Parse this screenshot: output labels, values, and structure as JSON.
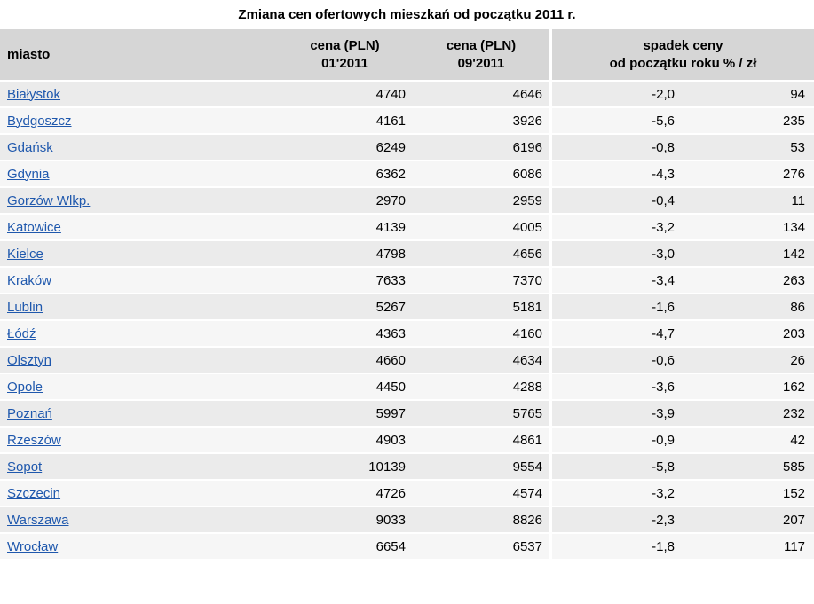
{
  "title": "Zmiana cen ofertowych mieszkań od początku 2011 r.",
  "colors": {
    "header_bg": "#d6d6d6",
    "row_odd_bg": "#ebebeb",
    "row_even_bg": "#f6f6f6",
    "separator": "#ffffff",
    "link_blue": "#1f58ad",
    "text": "#000000"
  },
  "table": {
    "headers": {
      "city": "miasto",
      "price1_line1": "cena (PLN)",
      "price1_line2": "01'2011",
      "price2_line1": "cena (PLN)",
      "price2_line2": "09'2011",
      "drop_line1": "spadek ceny",
      "drop_line2": "od początku roku % / zł"
    },
    "rows": [
      {
        "city": "Białystok",
        "price_01": "4740",
        "price_09": "4646",
        "drop_pct": "-2,0",
        "drop_zl": "94"
      },
      {
        "city": "Bydgoszcz",
        "price_01": "4161",
        "price_09": "3926",
        "drop_pct": "-5,6",
        "drop_zl": "235"
      },
      {
        "city": "Gdańsk",
        "price_01": "6249",
        "price_09": "6196",
        "drop_pct": "-0,8",
        "drop_zl": "53"
      },
      {
        "city": "Gdynia",
        "price_01": "6362",
        "price_09": "6086",
        "drop_pct": "-4,3",
        "drop_zl": "276"
      },
      {
        "city": "Gorzów Wlkp.",
        "price_01": "2970",
        "price_09": "2959",
        "drop_pct": "-0,4",
        "drop_zl": "11"
      },
      {
        "city": "Katowice",
        "price_01": "4139",
        "price_09": "4005",
        "drop_pct": "-3,2",
        "drop_zl": "134"
      },
      {
        "city": "Kielce",
        "price_01": "4798",
        "price_09": "4656",
        "drop_pct": "-3,0",
        "drop_zl": "142"
      },
      {
        "city": "Kraków",
        "price_01": "7633",
        "price_09": "7370",
        "drop_pct": "-3,4",
        "drop_zl": "263"
      },
      {
        "city": "Lublin",
        "price_01": "5267",
        "price_09": "5181",
        "drop_pct": "-1,6",
        "drop_zl": "86"
      },
      {
        "city": "Łódź",
        "price_01": "4363",
        "price_09": "4160",
        "drop_pct": "-4,7",
        "drop_zl": "203"
      },
      {
        "city": "Olsztyn",
        "price_01": "4660",
        "price_09": "4634",
        "drop_pct": "-0,6",
        "drop_zl": "26"
      },
      {
        "city": "Opole",
        "price_01": "4450",
        "price_09": "4288",
        "drop_pct": "-3,6",
        "drop_zl": "162"
      },
      {
        "city": "Poznań",
        "price_01": "5997",
        "price_09": "5765",
        "drop_pct": "-3,9",
        "drop_zl": "232"
      },
      {
        "city": "Rzeszów",
        "price_01": "4903",
        "price_09": "4861",
        "drop_pct": "-0,9",
        "drop_zl": "42"
      },
      {
        "city": "Sopot",
        "price_01": "10139",
        "price_09": "9554",
        "drop_pct": "-5,8",
        "drop_zl": "585"
      },
      {
        "city": "Szczecin",
        "price_01": "4726",
        "price_09": "4574",
        "drop_pct": "-3,2",
        "drop_zl": "152"
      },
      {
        "city": "Warszawa",
        "price_01": "9033",
        "price_09": "8826",
        "drop_pct": "-2,3",
        "drop_zl": "207"
      },
      {
        "city": "Wrocław",
        "price_01": "6654",
        "price_09": "6537",
        "drop_pct": "-1,8",
        "drop_zl": "117"
      }
    ]
  },
  "chart_data": {
    "type": "table",
    "title": "Zmiana cen ofertowych mieszkań od początku 2011 r.",
    "columns": [
      "miasto",
      "cena (PLN) 01'2011",
      "cena (PLN) 09'2011",
      "spadek ceny od początku roku %",
      "spadek ceny od początku roku zł"
    ],
    "rows": [
      [
        "Białystok",
        4740,
        4646,
        -2.0,
        94
      ],
      [
        "Bydgoszcz",
        4161,
        3926,
        -5.6,
        235
      ],
      [
        "Gdańsk",
        6249,
        6196,
        -0.8,
        53
      ],
      [
        "Gdynia",
        6362,
        6086,
        -4.3,
        276
      ],
      [
        "Gorzów Wlkp.",
        2970,
        2959,
        -0.4,
        11
      ],
      [
        "Katowice",
        4139,
        4005,
        -3.2,
        134
      ],
      [
        "Kielce",
        4798,
        4656,
        -3.0,
        142
      ],
      [
        "Kraków",
        7633,
        7370,
        -3.4,
        263
      ],
      [
        "Lublin",
        5267,
        5181,
        -1.6,
        86
      ],
      [
        "Łódź",
        4363,
        4160,
        -4.7,
        203
      ],
      [
        "Olsztyn",
        4660,
        4634,
        -0.6,
        26
      ],
      [
        "Opole",
        4450,
        4288,
        -3.6,
        162
      ],
      [
        "Poznań",
        5997,
        5765,
        -3.9,
        232
      ],
      [
        "Rzeszów",
        4903,
        4861,
        -0.9,
        42
      ],
      [
        "Sopot",
        10139,
        9554,
        -5.8,
        585
      ],
      [
        "Szczecin",
        4726,
        4574,
        -3.2,
        152
      ],
      [
        "Warszawa",
        9033,
        8826,
        -2.3,
        207
      ],
      [
        "Wrocław",
        6654,
        6537,
        -1.8,
        117
      ]
    ]
  }
}
